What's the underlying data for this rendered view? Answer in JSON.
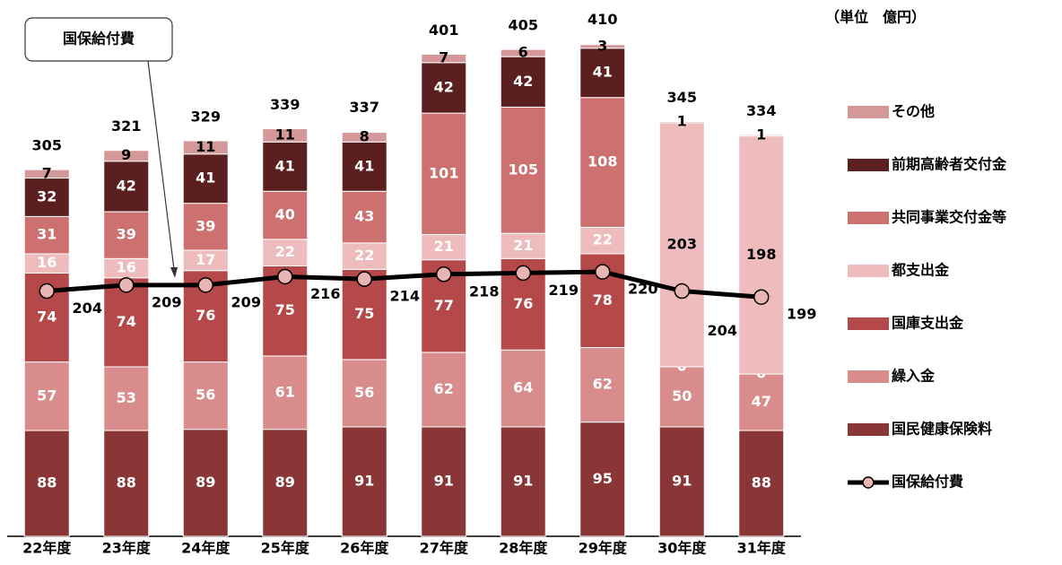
{
  "chart_data": {
    "type": "stacked_bar_line",
    "unit_label": "（単位　億円）",
    "categories": [
      "22年度",
      "23年度",
      "24年度",
      "25年度",
      "26年度",
      "27年度",
      "28年度",
      "29年度",
      "30年度",
      "31年度"
    ],
    "series": [
      {
        "name": "国民健康保険料",
        "color": "#8a3636",
        "values": [
          88,
          88,
          89,
          89,
          91,
          91,
          91,
          95,
          91,
          88
        ]
      },
      {
        "name": "繰入金",
        "color": "#d98c8c",
        "values": [
          57,
          53,
          56,
          61,
          56,
          62,
          64,
          62,
          50,
          47
        ]
      },
      {
        "name": "国庫支出金",
        "color": "#b54848",
        "values": [
          74,
          74,
          76,
          75,
          75,
          77,
          76,
          78,
          0,
          0
        ]
      },
      {
        "name": "都支出金",
        "color": "#eebcbc",
        "values": [
          16,
          16,
          17,
          22,
          22,
          21,
          21,
          22,
          203,
          198
        ]
      },
      {
        "name": "共同事業交付金等",
        "color": "#cc7070",
        "values": [
          31,
          39,
          39,
          40,
          43,
          101,
          105,
          108,
          0,
          0
        ]
      },
      {
        "name": "前期高齢者交付金",
        "color": "#5c1f1f",
        "values": [
          32,
          42,
          41,
          41,
          41,
          42,
          42,
          41,
          0,
          0
        ]
      },
      {
        "name": "その他",
        "color": "#d49898",
        "values": [
          7,
          9,
          11,
          11,
          8,
          7,
          6,
          3,
          1,
          1
        ]
      }
    ],
    "totals": [
      305,
      321,
      329,
      339,
      337,
      401,
      405,
      410,
      345,
      334
    ],
    "line": {
      "name": "国保給付費",
      "color": "#000000",
      "marker_color": "#e8b4b4",
      "values": [
        204,
        209,
        209,
        216,
        214,
        218,
        219,
        220,
        204,
        199
      ]
    },
    "ylim": [
      0,
      420
    ]
  }
}
